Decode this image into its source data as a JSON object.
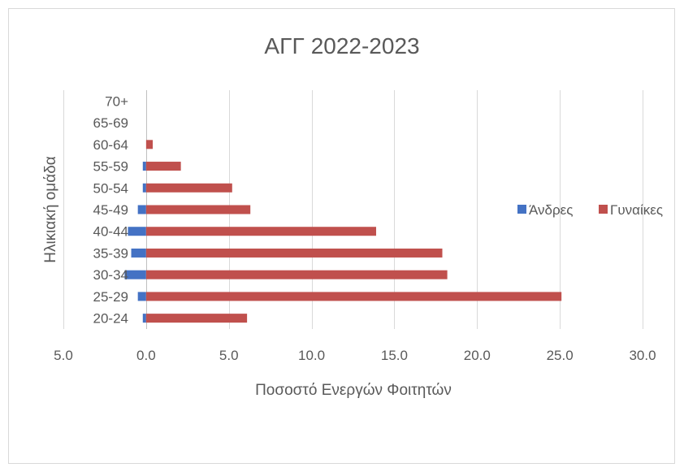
{
  "chart_data": {
    "type": "bar",
    "orientation": "horizontal",
    "title": "ΑΓΓ 2022-2023",
    "xlabel": "Ποσοστό Ενεργών Φοιτητών",
    "ylabel": "Ηλικιακή ομάδα",
    "categories": [
      "20-24",
      "25-29",
      "30-34",
      "35-39",
      "40-44",
      "45-49",
      "50-54",
      "55-59",
      "60-64",
      "65-69",
      "70+"
    ],
    "series": [
      {
        "name": "Άνδρες",
        "color": "#4472C4",
        "values": [
          -0.2,
          -0.5,
          -1.3,
          -0.9,
          -1.1,
          -0.5,
          -0.2,
          -0.2,
          0,
          0,
          0
        ]
      },
      {
        "name": "Γυναίκες",
        "color": "#C0504D",
        "values": [
          6.1,
          25.1,
          18.2,
          17.9,
          13.9,
          6.3,
          5.2,
          2.1,
          0.4,
          0,
          0
        ]
      }
    ],
    "xlim": [
      -5,
      30
    ],
    "xticks": [
      -5,
      0,
      5,
      10,
      15,
      20,
      25,
      30
    ],
    "xtick_labels": [
      "5.0",
      "0.0",
      "5.0",
      "10.0",
      "15.0",
      "20.0",
      "25.0",
      "30.0"
    ],
    "grid": true,
    "legend": "right"
  }
}
